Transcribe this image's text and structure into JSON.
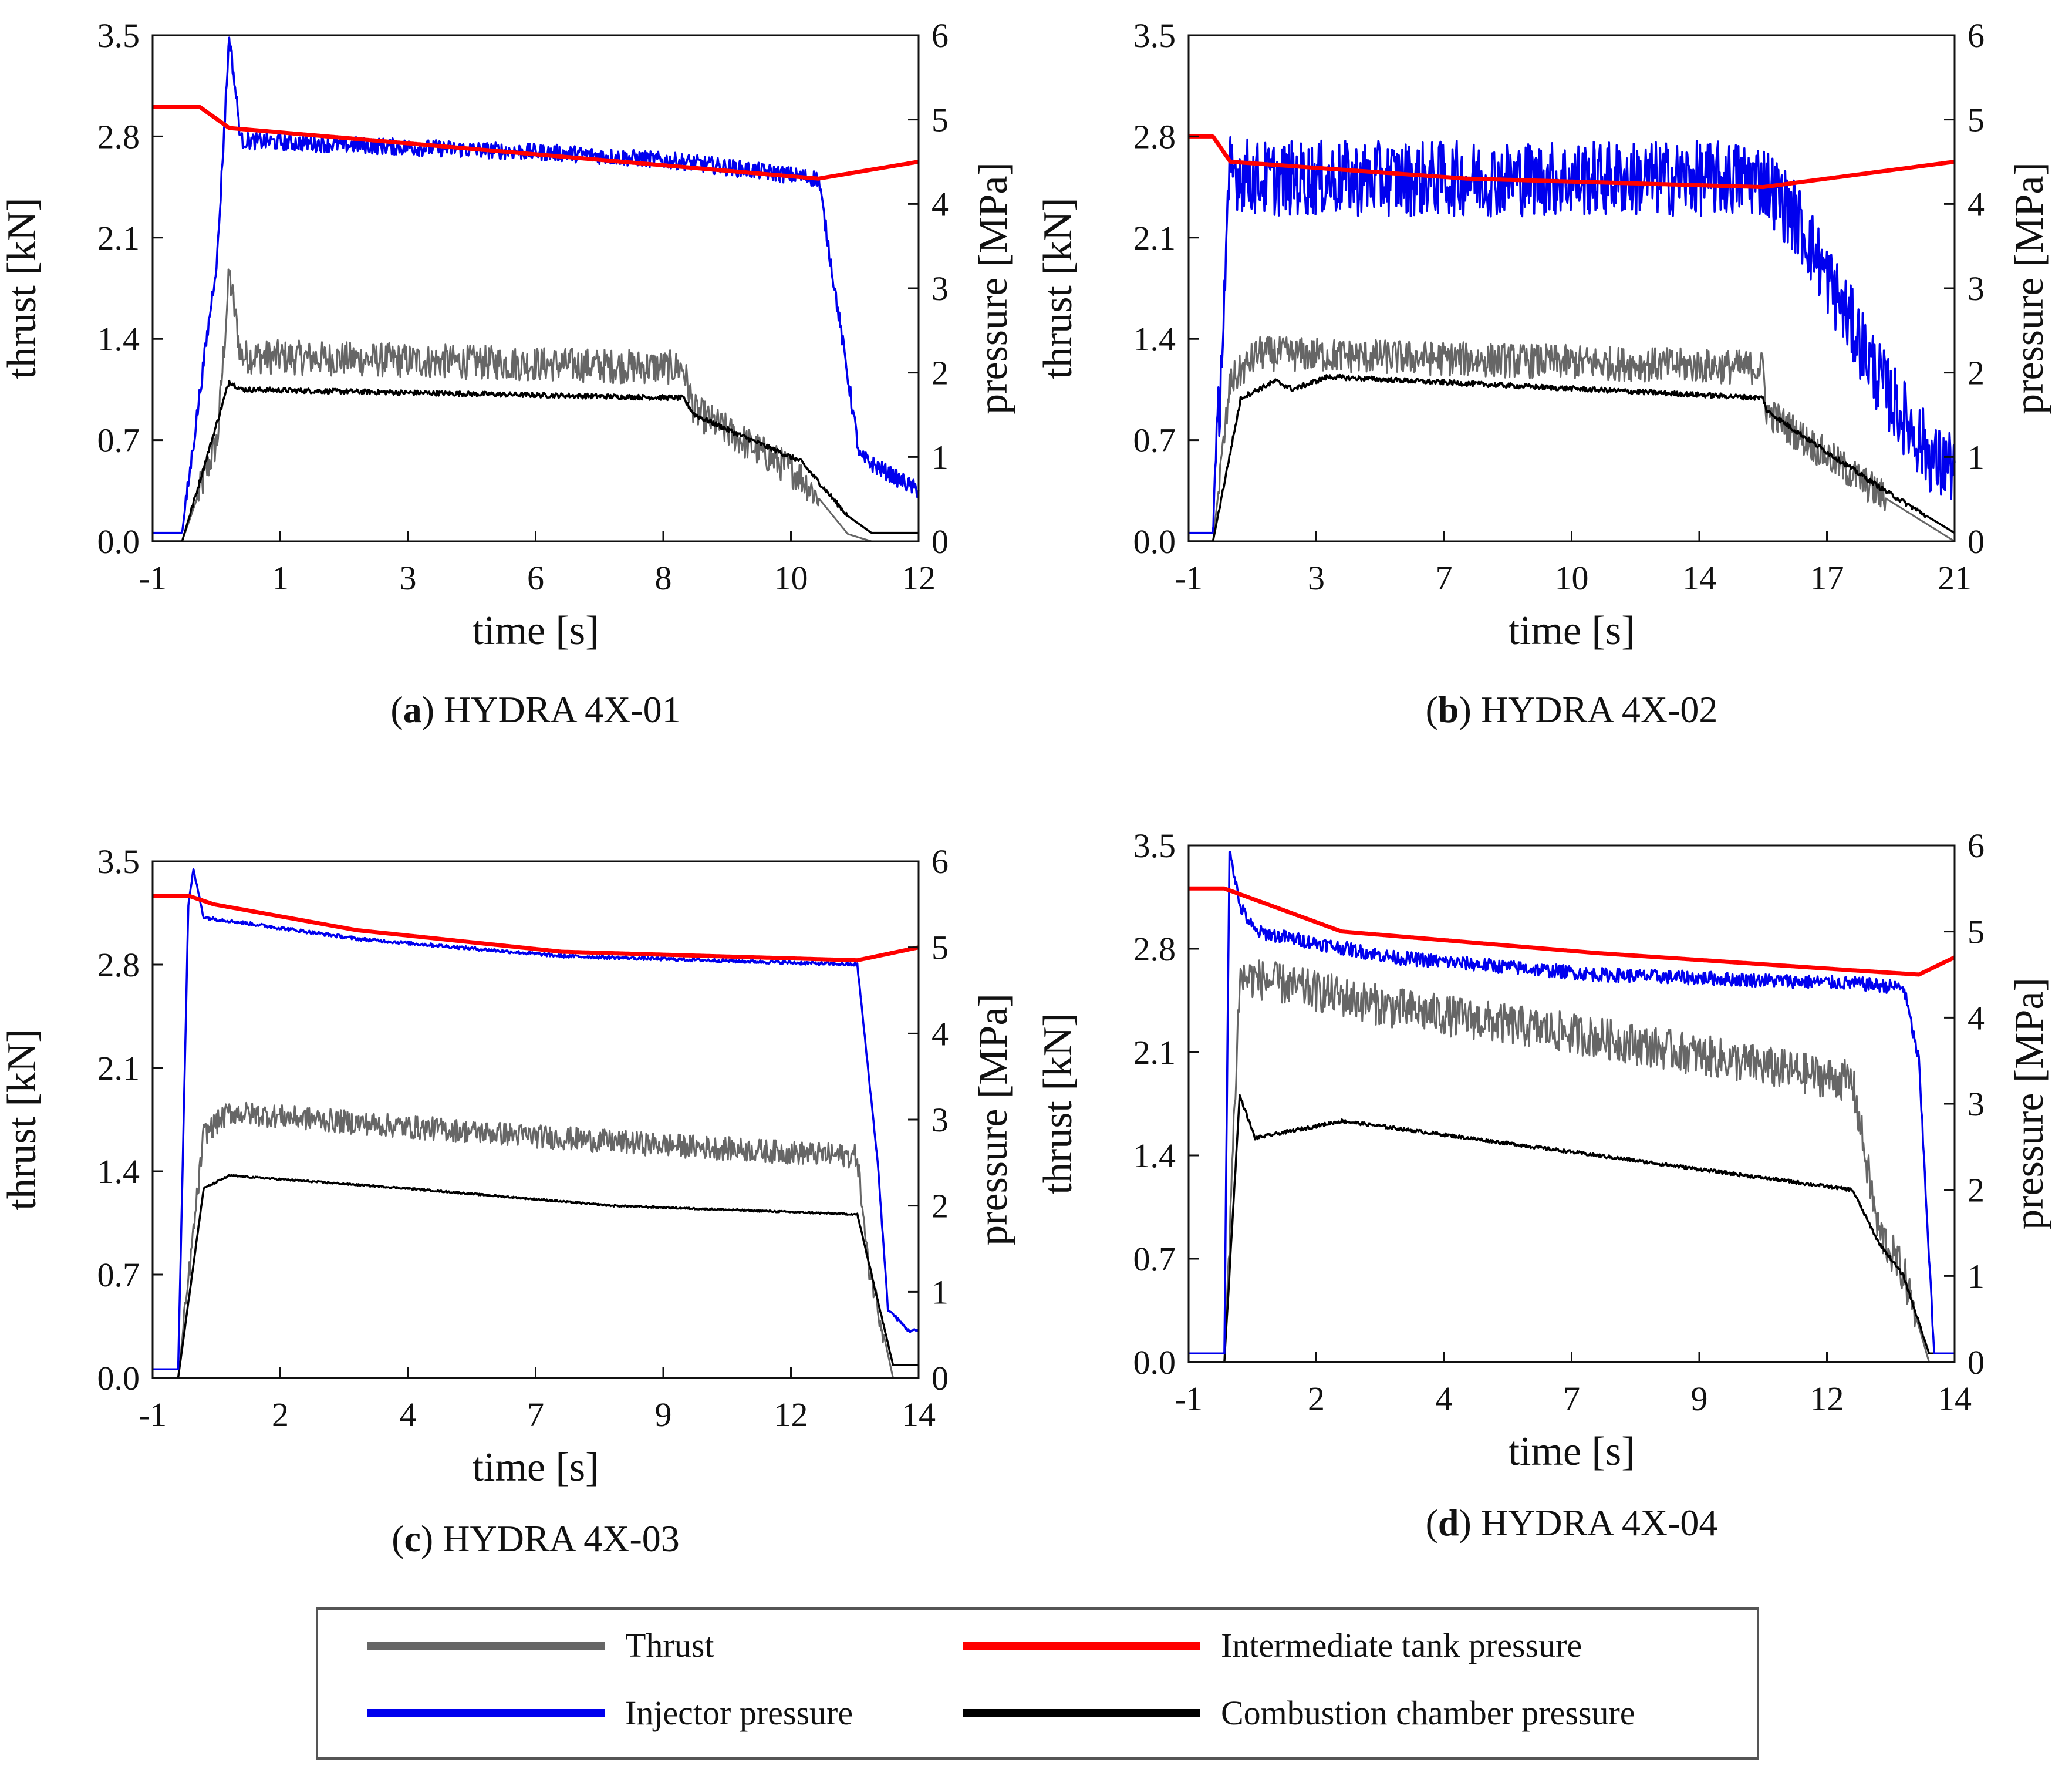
{
  "colors": {
    "thrust": "#666666",
    "injector": "#0000ee",
    "tank": "#ff0000",
    "chamber": "#000000"
  },
  "legend": {
    "thrust": "Thrust",
    "injector": "Injector pressure",
    "tank": "Intermediate tank pressure",
    "chamber": "Combustion chamber pressure"
  },
  "chart_data": [
    {
      "type": "line",
      "id": "a",
      "caption_letter": "a",
      "caption_text": "HYDRA 4X-01",
      "xlabel": "time [s]",
      "ylabel_left": "thrust [kN]",
      "ylabel_right": "pressure [MPa]",
      "xlim": [
        -1,
        12
      ],
      "ylim_left": [
        0,
        3.5
      ],
      "ylim_right": [
        0,
        6
      ],
      "xticks": [
        "-1",
        "1",
        "3",
        "6",
        "8",
        "10",
        "12"
      ],
      "yticks_left": [
        "0.0",
        "0.7",
        "1.4",
        "2.1",
        "2.8",
        "3.5"
      ],
      "yticks_right": [
        "0",
        "1",
        "2",
        "3",
        "4",
        "5",
        "6"
      ],
      "series": [
        {
          "key": "tank",
          "name": "Intermediate tank pressure",
          "x": [
            -1,
            -0.2,
            0.3,
            10.3,
            12
          ],
          "y": [
            5.15,
            5.15,
            4.9,
            4.3,
            4.5
          ],
          "noise": 0
        },
        {
          "key": "injector",
          "name": "Injector pressure",
          "x": [
            -1,
            -0.5,
            0.1,
            0.3,
            0.5,
            6,
            8,
            10.3,
            11,
            12
          ],
          "y": [
            0.1,
            0.1,
            3.4,
            6.0,
            4.75,
            4.6,
            4.5,
            4.3,
            1.0,
            0.6
          ],
          "noise": 0.1
        },
        {
          "key": "thrust",
          "name": "Thrust",
          "x": [
            -1,
            -0.5,
            0.1,
            0.3,
            0.5,
            8,
            8.2,
            9,
            10,
            10.8,
            11.2,
            12
          ],
          "y": [
            0.0,
            0.0,
            0.7,
            1.85,
            1.28,
            1.2,
            0.9,
            0.7,
            0.45,
            0.05,
            0.0,
            0.0
          ],
          "noise": 0.12
        },
        {
          "key": "chamber",
          "name": "Combustion chamber pressure",
          "x": [
            -1,
            -0.5,
            0.3,
            0.5,
            8,
            8.2,
            9,
            10,
            10.8,
            11.2,
            12
          ],
          "y": [
            0.0,
            0.0,
            1.9,
            1.8,
            1.7,
            1.5,
            1.25,
            0.95,
            0.3,
            0.1,
            0.1
          ],
          "noise": 0.03
        }
      ]
    },
    {
      "type": "line",
      "id": "b",
      "caption_letter": "b",
      "caption_text": "HYDRA 4X-02",
      "xlabel": "time [s]",
      "ylabel_left": "thrust [kN]",
      "ylabel_right": "pressure [MPa]",
      "xlim": [
        -1,
        21
      ],
      "ylim_left": [
        0,
        3.5
      ],
      "ylim_right": [
        0,
        6
      ],
      "xticks": [
        "-1",
        "3",
        "7",
        "10",
        "14",
        "17",
        "21"
      ],
      "yticks_left": [
        "0.0",
        "0.7",
        "1.4",
        "2.1",
        "2.8",
        "3.5"
      ],
      "yticks_right": [
        "0",
        "1",
        "2",
        "3",
        "4",
        "5",
        "6"
      ],
      "series": [
        {
          "key": "tank",
          "name": "Intermediate tank pressure",
          "x": [
            -1,
            -0.3,
            0.2,
            7,
            15.5,
            21
          ],
          "y": [
            4.8,
            4.8,
            4.5,
            4.3,
            4.2,
            4.5
          ],
          "noise": 0
        },
        {
          "key": "injector",
          "name": "Injector pressure",
          "x": [
            -1,
            -0.3,
            0.2,
            1,
            15.5,
            16.5,
            19,
            20.5,
            21
          ],
          "y": [
            0.1,
            0.1,
            4.4,
            4.3,
            4.3,
            3.8,
            1.8,
            0.9,
            0.9
          ],
          "noise": 0.45
        },
        {
          "key": "thrust",
          "name": "Thrust",
          "x": [
            -1,
            -0.3,
            0.2,
            1,
            15.5,
            15.6,
            17,
            19,
            21
          ],
          "y": [
            0.0,
            0.0,
            1.1,
            1.3,
            1.2,
            0.9,
            0.65,
            0.3,
            0.0
          ],
          "noise": 0.12
        },
        {
          "key": "chamber",
          "name": "Combustion chamber pressure",
          "x": [
            -1,
            -0.3,
            0.5,
            1.5,
            2,
            3,
            15.5,
            15.6,
            17,
            19,
            21
          ],
          "y": [
            0.0,
            0.0,
            1.7,
            1.9,
            1.8,
            1.95,
            1.7,
            1.55,
            1.15,
            0.6,
            0.1
          ],
          "noise": 0.03
        }
      ]
    },
    {
      "type": "line",
      "id": "c",
      "caption_letter": "c",
      "caption_text": "HYDRA 4X-03",
      "xlabel": "time [s]",
      "ylabel_left": "thrust [kN]",
      "ylabel_right": "pressure [MPa]",
      "xlim": [
        -1,
        14
      ],
      "ylim_left": [
        0,
        3.5
      ],
      "ylim_right": [
        0,
        6
      ],
      "xticks": [
        "-1",
        "2",
        "4",
        "7",
        "9",
        "12",
        "14"
      ],
      "yticks_left": [
        "0.0",
        "0.7",
        "1.4",
        "2.1",
        "2.8",
        "3.5"
      ],
      "yticks_right": [
        "0",
        "1",
        "2",
        "3",
        "4",
        "5",
        "6"
      ],
      "series": [
        {
          "key": "tank",
          "name": "Intermediate tank pressure",
          "x": [
            -1,
            -0.3,
            0.2,
            3,
            7,
            12.8,
            14
          ],
          "y": [
            5.6,
            5.6,
            5.5,
            5.2,
            4.95,
            4.85,
            5.0
          ],
          "noise": 0
        },
        {
          "key": "injector",
          "name": "Injector pressure",
          "x": [
            -1,
            -0.5,
            -0.3,
            -0.2,
            0,
            3,
            7,
            12.8,
            13.2,
            13.4,
            13.8,
            14
          ],
          "y": [
            0.1,
            0.1,
            5.5,
            5.9,
            5.35,
            5.1,
            4.9,
            4.8,
            2.5,
            0.8,
            0.55,
            0.55
          ],
          "noise": 0.02
        },
        {
          "key": "thrust",
          "name": "Thrust",
          "x": [
            -1,
            -0.5,
            0,
            0.5,
            4,
            8,
            12.8,
            13,
            13.5,
            14
          ],
          "y": [
            0.0,
            0.0,
            1.65,
            1.8,
            1.7,
            1.6,
            1.5,
            0.8,
            0.0,
            0.0
          ],
          "noise": 0.08
        },
        {
          "key": "chamber",
          "name": "Combustion chamber pressure",
          "x": [
            -1,
            -0.5,
            0,
            0.5,
            4,
            8,
            12.8,
            13,
            13.5,
            14
          ],
          "y": [
            0.0,
            0.0,
            2.2,
            2.35,
            2.2,
            2.0,
            1.9,
            1.4,
            0.15,
            0.15
          ],
          "noise": 0.01
        }
      ]
    },
    {
      "type": "line",
      "id": "d",
      "caption_letter": "d",
      "caption_text": "HYDRA 4X-04",
      "xlabel": "time [s]",
      "ylabel_left": "thrust [kN]",
      "ylabel_right": "pressure [MPa]",
      "xlim": [
        -1,
        14
      ],
      "ylim_left": [
        0,
        3.5
      ],
      "ylim_right": [
        0,
        6
      ],
      "xticks": [
        "-1",
        "2",
        "4",
        "7",
        "9",
        "12",
        "14"
      ],
      "yticks_left": [
        "0.0",
        "0.7",
        "1.4",
        "2.1",
        "2.8",
        "3.5"
      ],
      "yticks_right": [
        "0",
        "1",
        "2",
        "3",
        "4",
        "5",
        "6"
      ],
      "series": [
        {
          "key": "tank",
          "name": "Intermediate tank pressure",
          "x": [
            -1,
            -0.3,
            2,
            7,
            12,
            13.3,
            14
          ],
          "y": [
            5.5,
            5.5,
            5.0,
            4.75,
            4.55,
            4.5,
            4.7
          ],
          "noise": 0
        },
        {
          "key": "injector",
          "name": "Injector pressure",
          "x": [
            -1,
            -0.3,
            -0.2,
            0,
            0.3,
            3,
            7,
            12,
            13,
            13.3,
            13.6,
            14
          ],
          "y": [
            0.1,
            0.1,
            6.0,
            5.3,
            5.0,
            4.7,
            4.5,
            4.4,
            4.35,
            3.5,
            0.1,
            0.1
          ],
          "noise": 0.08
        },
        {
          "key": "thrust",
          "name": "Thrust",
          "x": [
            -1,
            -0.3,
            0,
            0.3,
            3,
            7,
            12,
            12.5,
            13,
            13.5,
            14
          ],
          "y": [
            0.0,
            0.0,
            2.6,
            2.6,
            2.4,
            2.2,
            1.9,
            0.9,
            0.6,
            0.0,
            0.0
          ],
          "noise": 0.14
        },
        {
          "key": "chamber",
          "name": "Combustion chamber pressure",
          "x": [
            -1,
            -0.3,
            0,
            0.3,
            2,
            7,
            12,
            12.5,
            13,
            13.5,
            14
          ],
          "y": [
            0.0,
            0.0,
            3.1,
            2.6,
            2.8,
            2.4,
            2.0,
            1.4,
            1.0,
            0.1,
            0.1
          ],
          "noise": 0.02
        }
      ]
    }
  ]
}
